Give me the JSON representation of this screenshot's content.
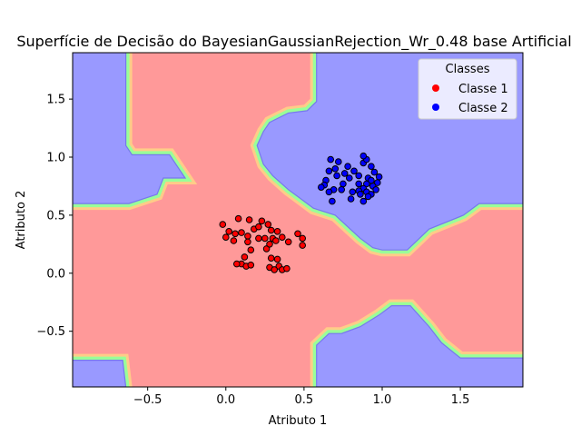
{
  "chart_data": {
    "type": "scatter",
    "title": "Superfície de Decisão do BayesianGaussianRejection_Wr_0.48 base Artificial",
    "xlabel": "Atributo 1",
    "ylabel": "Atributo 2",
    "xlim": [
      -0.98,
      1.9
    ],
    "ylim": [
      -0.98,
      1.9
    ],
    "xticks": [
      -0.5,
      0.0,
      0.5,
      1.0,
      1.5
    ],
    "xtick_labels": [
      "−0.5",
      "0.0",
      "0.5",
      "1.0",
      "1.5"
    ],
    "yticks": [
      -0.5,
      0.0,
      0.5,
      1.0,
      1.5
    ],
    "ytick_labels": [
      "−0.5",
      "0.0",
      "0.5",
      "1.0",
      "1.5"
    ],
    "grid": false,
    "legend": {
      "title": "Classes",
      "placement": "top-right",
      "entries": [
        {
          "label": "Classe 1",
          "color": "#ff0000"
        },
        {
          "label": "Classe 2",
          "color": "#0000ff"
        }
      ]
    },
    "regions": {
      "class1_color": "#ff9999",
      "class2_color": "#9999ff",
      "boundary_colors": [
        "#ffcc88",
        "#99ff99"
      ],
      "class2_polygons": [
        [
          [
            -0.98,
            1.9
          ],
          [
            -0.64,
            1.9
          ],
          [
            -0.64,
            1.1
          ],
          [
            -0.6,
            1.02
          ],
          [
            -0.48,
            1.02
          ],
          [
            -0.36,
            1.02
          ],
          [
            -0.3,
            0.9
          ],
          [
            -0.26,
            0.82
          ],
          [
            -0.4,
            0.82
          ],
          [
            -0.44,
            0.68
          ],
          [
            -0.62,
            0.6
          ],
          [
            -0.98,
            0.6
          ]
        ],
        [
          [
            0.58,
            1.9
          ],
          [
            1.9,
            1.9
          ],
          [
            1.9,
            0.6
          ],
          [
            1.62,
            0.6
          ],
          [
            1.52,
            0.5
          ],
          [
            1.3,
            0.38
          ],
          [
            1.16,
            0.2
          ],
          [
            1.0,
            0.2
          ],
          [
            0.94,
            0.22
          ],
          [
            0.86,
            0.3
          ],
          [
            0.78,
            0.4
          ],
          [
            0.7,
            0.5
          ],
          [
            0.56,
            0.56
          ],
          [
            0.46,
            0.66
          ],
          [
            0.4,
            0.72
          ],
          [
            0.3,
            0.84
          ],
          [
            0.24,
            0.94
          ],
          [
            0.2,
            1.1
          ],
          [
            0.24,
            1.22
          ],
          [
            0.28,
            1.3
          ],
          [
            0.4,
            1.38
          ],
          [
            0.52,
            1.4
          ],
          [
            0.58,
            1.48
          ]
        ],
        [
          [
            -0.98,
            -0.75
          ],
          [
            -0.66,
            -0.75
          ],
          [
            -0.64,
            -0.98
          ],
          [
            -0.98,
            -0.98
          ]
        ],
        [
          [
            0.58,
            -0.98
          ],
          [
            1.9,
            -0.98
          ],
          [
            1.9,
            -0.73
          ],
          [
            1.5,
            -0.73
          ],
          [
            1.38,
            -0.6
          ],
          [
            1.3,
            -0.46
          ],
          [
            1.18,
            -0.28
          ],
          [
            1.06,
            -0.28
          ],
          [
            0.98,
            -0.36
          ],
          [
            0.86,
            -0.46
          ],
          [
            0.74,
            -0.52
          ],
          [
            0.66,
            -0.52
          ],
          [
            0.58,
            -0.62
          ]
        ]
      ]
    },
    "series": [
      {
        "name": "Classe 1",
        "color": "#ff0000",
        "points": [
          [
            -0.02,
            0.42
          ],
          [
            0.08,
            0.47
          ],
          [
            0.15,
            0.46
          ],
          [
            0.23,
            0.45
          ],
          [
            0.27,
            0.42
          ],
          [
            0.02,
            0.36
          ],
          [
            0.06,
            0.34
          ],
          [
            0.1,
            0.35
          ],
          [
            0.18,
            0.38
          ],
          [
            0.21,
            0.4
          ],
          [
            0.29,
            0.37
          ],
          [
            0.33,
            0.36
          ],
          [
            0.36,
            0.31
          ],
          [
            0.46,
            0.34
          ],
          [
            0.49,
            0.3
          ],
          [
            0.0,
            0.31
          ],
          [
            0.05,
            0.28
          ],
          [
            0.14,
            0.32
          ],
          [
            0.14,
            0.27
          ],
          [
            0.21,
            0.3
          ],
          [
            0.25,
            0.3
          ],
          [
            0.3,
            0.3
          ],
          [
            0.32,
            0.28
          ],
          [
            0.4,
            0.27
          ],
          [
            0.49,
            0.24
          ],
          [
            0.16,
            0.2
          ],
          [
            0.26,
            0.21
          ],
          [
            0.28,
            0.25
          ],
          [
            0.12,
            0.14
          ],
          [
            0.1,
            0.08
          ],
          [
            0.07,
            0.08
          ],
          [
            0.13,
            0.06
          ],
          [
            0.16,
            0.07
          ],
          [
            0.29,
            0.13
          ],
          [
            0.33,
            0.12
          ],
          [
            0.34,
            0.06
          ],
          [
            0.28,
            0.05
          ],
          [
            0.31,
            0.03
          ],
          [
            0.36,
            0.03
          ],
          [
            0.39,
            0.04
          ]
        ]
      },
      {
        "name": "Classe 2",
        "color": "#0000ff",
        "points": [
          [
            0.67,
            0.98
          ],
          [
            0.72,
            0.96
          ],
          [
            0.7,
            0.9
          ],
          [
            0.66,
            0.88
          ],
          [
            0.78,
            0.92
          ],
          [
            0.88,
            0.95
          ],
          [
            0.9,
            0.98
          ],
          [
            0.88,
            1.01
          ],
          [
            0.93,
            0.92
          ],
          [
            0.82,
            0.88
          ],
          [
            0.95,
            0.87
          ],
          [
            0.98,
            0.83
          ],
          [
            0.97,
            0.78
          ],
          [
            0.91,
            0.82
          ],
          [
            0.85,
            0.84
          ],
          [
            0.71,
            0.84
          ],
          [
            0.64,
            0.8
          ],
          [
            0.79,
            0.82
          ],
          [
            0.75,
            0.77
          ],
          [
            0.9,
            0.77
          ],
          [
            0.94,
            0.75
          ],
          [
            0.88,
            0.73
          ],
          [
            0.85,
            0.71
          ],
          [
            0.63,
            0.76
          ],
          [
            0.61,
            0.74
          ],
          [
            0.69,
            0.72
          ],
          [
            0.74,
            0.72
          ],
          [
            0.81,
            0.7
          ],
          [
            0.86,
            0.68
          ],
          [
            0.9,
            0.7
          ],
          [
            0.93,
            0.68
          ],
          [
            0.96,
            0.72
          ],
          [
            0.91,
            0.66
          ],
          [
            0.68,
            0.62
          ],
          [
            0.8,
            0.64
          ],
          [
            0.88,
            0.62
          ],
          [
            0.66,
            0.7
          ],
          [
            0.85,
            0.77
          ],
          [
            0.93,
            0.8
          ],
          [
            0.76,
            0.86
          ]
        ]
      }
    ]
  }
}
